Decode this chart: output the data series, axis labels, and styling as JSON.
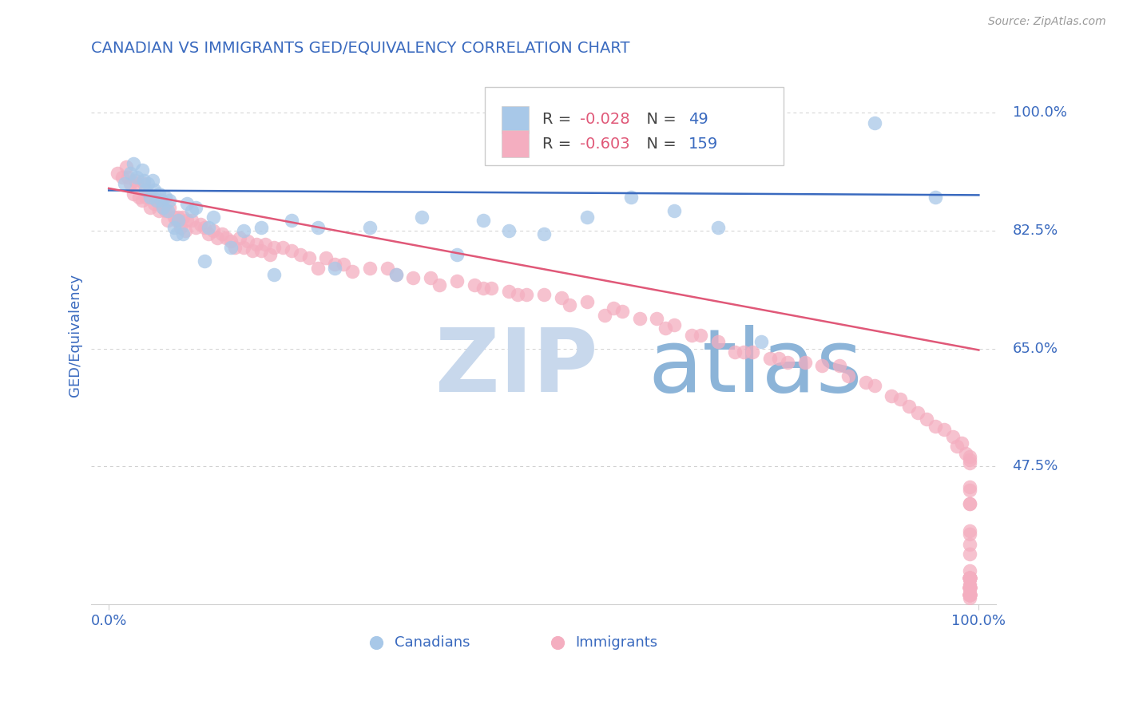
{
  "title": "CANADIAN VS IMMIGRANTS GED/EQUIVALENCY CORRELATION CHART",
  "source_text": "Source: ZipAtlas.com",
  "ylabel": "GED/Equivalency",
  "xlim": [
    -0.02,
    1.02
  ],
  "ylim": [
    0.27,
    1.07
  ],
  "yticks": [
    0.475,
    0.65,
    0.825,
    1.0
  ],
  "ytick_labels": [
    "47.5%",
    "65.0%",
    "82.5%",
    "100.0%"
  ],
  "canadians_R": -0.028,
  "canadians_N": 49,
  "immigrants_R": -0.603,
  "immigrants_N": 159,
  "canadians_color": "#a8c8e8",
  "immigrants_color": "#f4aec0",
  "canadians_line_color": "#3a6abf",
  "immigrants_line_color": "#e05878",
  "legend_box_canadians": "#a8c8e8",
  "legend_box_immigrants": "#f4aec0",
  "watermark_ZIP_color": "#c8d8ec",
  "watermark_atlas_color": "#8cb4d8",
  "background_color": "#ffffff",
  "grid_color": "#d0d0d0",
  "title_color": "#3a6abf",
  "axis_color": "#3a6abf",
  "tick_color": "#3a6abf",
  "source_color": "#999999",
  "legend_R_color": "#e05878",
  "legend_N_color": "#3a6abf",
  "canadians_line_x0": 0.0,
  "canadians_line_y0": 0.885,
  "canadians_line_x1": 1.0,
  "canadians_line_y1": 0.878,
  "immigrants_line_x0": 0.0,
  "immigrants_line_y0": 0.888,
  "immigrants_line_x1": 1.0,
  "immigrants_line_y1": 0.648,
  "canadians_x": [
    0.018,
    0.025,
    0.028,
    0.032,
    0.038,
    0.04,
    0.042,
    0.045,
    0.048,
    0.05,
    0.052,
    0.055,
    0.058,
    0.06,
    0.062,
    0.065,
    0.068,
    0.07,
    0.075,
    0.078,
    0.08,
    0.085,
    0.09,
    0.095,
    0.1,
    0.11,
    0.115,
    0.12,
    0.14,
    0.155,
    0.175,
    0.19,
    0.21,
    0.24,
    0.26,
    0.3,
    0.33,
    0.36,
    0.4,
    0.43,
    0.46,
    0.5,
    0.55,
    0.6,
    0.65,
    0.7,
    0.75,
    0.88,
    0.95
  ],
  "canadians_y": [
    0.895,
    0.91,
    0.925,
    0.905,
    0.915,
    0.9,
    0.885,
    0.895,
    0.875,
    0.9,
    0.885,
    0.87,
    0.88,
    0.87,
    0.86,
    0.875,
    0.855,
    0.87,
    0.83,
    0.82,
    0.84,
    0.82,
    0.865,
    0.855,
    0.86,
    0.78,
    0.83,
    0.845,
    0.8,
    0.825,
    0.83,
    0.76,
    0.84,
    0.83,
    0.77,
    0.83,
    0.76,
    0.845,
    0.79,
    0.84,
    0.825,
    0.82,
    0.845,
    0.875,
    0.855,
    0.83,
    0.66,
    0.985,
    0.875
  ],
  "immigrants_x": [
    0.01,
    0.015,
    0.02,
    0.022,
    0.025,
    0.028,
    0.03,
    0.032,
    0.035,
    0.038,
    0.04,
    0.042,
    0.045,
    0.048,
    0.05,
    0.052,
    0.055,
    0.058,
    0.06,
    0.062,
    0.065,
    0.068,
    0.07,
    0.075,
    0.078,
    0.08,
    0.082,
    0.085,
    0.088,
    0.09,
    0.095,
    0.1,
    0.105,
    0.11,
    0.115,
    0.12,
    0.125,
    0.13,
    0.135,
    0.14,
    0.145,
    0.15,
    0.155,
    0.16,
    0.165,
    0.17,
    0.175,
    0.18,
    0.185,
    0.19,
    0.2,
    0.21,
    0.22,
    0.23,
    0.24,
    0.25,
    0.26,
    0.27,
    0.28,
    0.3,
    0.32,
    0.33,
    0.35,
    0.37,
    0.38,
    0.4,
    0.42,
    0.43,
    0.44,
    0.46,
    0.47,
    0.48,
    0.5,
    0.52,
    0.53,
    0.55,
    0.57,
    0.58,
    0.59,
    0.61,
    0.63,
    0.64,
    0.65,
    0.67,
    0.68,
    0.7,
    0.72,
    0.73,
    0.74,
    0.76,
    0.77,
    0.78,
    0.8,
    0.82,
    0.84,
    0.85,
    0.87,
    0.88,
    0.9,
    0.91,
    0.92,
    0.93,
    0.94,
    0.95,
    0.96,
    0.97,
    0.975,
    0.98,
    0.985,
    0.99,
    0.99,
    0.99,
    0.99,
    0.99,
    0.99,
    0.99,
    0.99,
    0.99,
    0.99,
    0.99,
    0.99,
    0.99,
    0.99,
    0.99,
    0.99,
    0.99,
    0.99,
    0.99,
    0.99,
    0.99,
    0.99,
    0.99,
    0.99,
    0.99,
    0.99,
    0.99,
    0.99,
    0.99,
    0.99,
    0.99,
    0.99,
    0.99,
    0.99,
    0.99,
    0.99,
    0.99,
    0.99,
    0.99,
    0.99,
    0.99,
    0.99,
    0.99,
    0.99,
    0.99,
    0.99,
    0.99,
    0.99,
    0.99,
    0.99,
    0.99,
    0.99
  ],
  "immigrants_y": [
    0.91,
    0.905,
    0.92,
    0.905,
    0.895,
    0.88,
    0.9,
    0.895,
    0.875,
    0.87,
    0.895,
    0.875,
    0.88,
    0.86,
    0.875,
    0.865,
    0.87,
    0.855,
    0.87,
    0.86,
    0.855,
    0.84,
    0.86,
    0.845,
    0.84,
    0.845,
    0.83,
    0.845,
    0.825,
    0.84,
    0.84,
    0.83,
    0.835,
    0.83,
    0.82,
    0.825,
    0.815,
    0.82,
    0.815,
    0.81,
    0.8,
    0.815,
    0.8,
    0.81,
    0.795,
    0.805,
    0.795,
    0.805,
    0.79,
    0.8,
    0.8,
    0.795,
    0.79,
    0.785,
    0.77,
    0.785,
    0.775,
    0.775,
    0.765,
    0.77,
    0.77,
    0.76,
    0.755,
    0.755,
    0.745,
    0.75,
    0.745,
    0.74,
    0.74,
    0.735,
    0.73,
    0.73,
    0.73,
    0.725,
    0.715,
    0.72,
    0.7,
    0.71,
    0.705,
    0.695,
    0.695,
    0.68,
    0.685,
    0.67,
    0.67,
    0.66,
    0.645,
    0.645,
    0.645,
    0.635,
    0.635,
    0.63,
    0.63,
    0.625,
    0.625,
    0.61,
    0.6,
    0.595,
    0.58,
    0.575,
    0.565,
    0.555,
    0.545,
    0.535,
    0.53,
    0.52,
    0.505,
    0.51,
    0.495,
    0.49,
    0.485,
    0.48,
    0.445,
    0.44,
    0.42,
    0.42,
    0.38,
    0.375,
    0.36,
    0.345,
    0.32,
    0.31,
    0.3,
    0.285,
    0.285,
    0.31,
    0.295,
    0.28,
    0.31,
    0.295,
    0.285,
    0.31,
    0.295,
    0.285,
    0.31,
    0.295,
    0.285,
    0.31,
    0.295,
    0.285,
    0.31,
    0.295,
    0.285,
    0.31,
    0.295,
    0.285,
    0.31,
    0.295,
    0.285,
    0.31,
    0.295,
    0.285,
    0.31,
    0.295,
    0.285,
    0.31,
    0.295,
    0.285,
    0.31,
    0.295
  ]
}
